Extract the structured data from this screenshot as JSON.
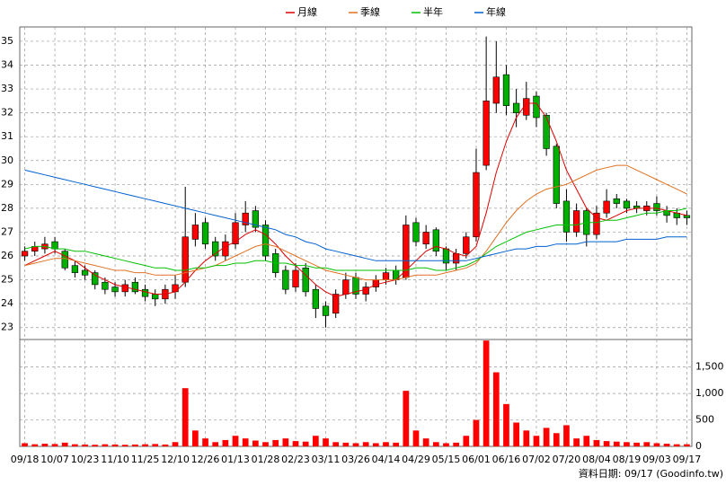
{
  "chart_data": {
    "type": "candlestick",
    "categories": [
      "09/18",
      null,
      null,
      "10/07",
      null,
      null,
      "10/23",
      null,
      null,
      "11/10",
      null,
      null,
      "11/25",
      null,
      null,
      "12/10",
      null,
      null,
      "12/26",
      null,
      null,
      "01/13",
      null,
      null,
      "01/28",
      null,
      null,
      "02/23",
      null,
      null,
      "03/11",
      null,
      null,
      "03/26",
      null,
      null,
      "04/14",
      null,
      null,
      "04/29",
      null,
      null,
      "05/15",
      null,
      null,
      "06/01",
      null,
      null,
      "06/16",
      null,
      null,
      "07/02",
      null,
      null,
      "07/20",
      null,
      null,
      "08/04",
      null,
      null,
      "08/19",
      null,
      null,
      "09/03",
      null,
      null,
      "09/17"
    ],
    "open": [
      26.0,
      26.2,
      26.3,
      26.6,
      26.2,
      25.6,
      25.4,
      25.3,
      24.9,
      24.7,
      24.5,
      24.9,
      24.6,
      24.4,
      24.2,
      24.5,
      24.9,
      26.7,
      27.4,
      26.6,
      26.0,
      26.5,
      27.3,
      27.9,
      27.3,
      26.1,
      25.4,
      24.7,
      25.5,
      24.6,
      23.9,
      23.6,
      24.4,
      25.1,
      24.4,
      24.7,
      25.0,
      25.4,
      25.1,
      27.4,
      26.5,
      27.1,
      26.3,
      25.7,
      26.1,
      26.8,
      29.8,
      32.4,
      33.6,
      32.4,
      31.9,
      32.7,
      31.9,
      30.6,
      28.3,
      27.0,
      27.9,
      26.9,
      27.8,
      28.4,
      28.3,
      28.1,
      27.9,
      28.2,
      27.9,
      27.8,
      27.7
    ],
    "high": [
      26.4,
      26.6,
      26.8,
      26.8,
      26.3,
      25.8,
      25.6,
      25.4,
      25.1,
      24.9,
      25.0,
      25.1,
      24.8,
      24.6,
      24.8,
      25.2,
      28.9,
      27.8,
      27.6,
      26.8,
      26.9,
      27.8,
      28.3,
      28.1,
      27.5,
      26.3,
      25.6,
      25.7,
      25.7,
      24.8,
      24.1,
      24.6,
      25.3,
      25.3,
      24.9,
      25.2,
      25.5,
      25.6,
      27.7,
      27.6,
      27.3,
      27.2,
      26.4,
      26.3,
      27.0,
      30.5,
      35.2,
      35.0,
      34.0,
      33.0,
      33.3,
      32.9,
      32.0,
      30.7,
      28.8,
      28.2,
      28.0,
      28.1,
      28.8,
      28.6,
      28.4,
      28.3,
      28.3,
      28.5,
      28.1,
      28.0,
      27.9
    ],
    "low": [
      25.8,
      26.0,
      26.1,
      26.1,
      25.4,
      25.1,
      25.0,
      24.6,
      24.4,
      24.3,
      24.3,
      24.4,
      24.1,
      23.9,
      24.0,
      24.2,
      24.7,
      26.4,
      26.3,
      25.8,
      25.8,
      26.3,
      27.0,
      27.0,
      25.8,
      25.1,
      24.4,
      24.5,
      24.3,
      23.4,
      23.0,
      23.4,
      24.2,
      24.2,
      24.1,
      24.5,
      24.8,
      24.8,
      25.0,
      26.4,
      26.3,
      26.0,
      25.4,
      25.4,
      25.9,
      26.6,
      29.6,
      32.0,
      31.9,
      31.4,
      31.7,
      31.4,
      30.2,
      28.0,
      26.6,
      26.8,
      26.4,
      26.7,
      27.6,
      28.0,
      27.8,
      27.8,
      27.7,
      27.7,
      27.4,
      27.3,
      27.3
    ],
    "close": [
      26.2,
      26.4,
      26.5,
      26.3,
      25.5,
      25.3,
      25.2,
      24.8,
      24.6,
      24.5,
      24.8,
      24.5,
      24.3,
      24.2,
      24.6,
      24.8,
      26.8,
      27.3,
      26.5,
      26.0,
      26.6,
      27.4,
      27.8,
      27.2,
      26.0,
      25.3,
      24.6,
      25.4,
      24.5,
      23.8,
      23.5,
      24.4,
      25.0,
      24.4,
      24.7,
      25.0,
      25.3,
      25.0,
      27.3,
      26.6,
      27.0,
      26.2,
      25.7,
      26.1,
      26.8,
      29.5,
      32.5,
      33.5,
      32.3,
      32.0,
      32.6,
      31.8,
      30.5,
      28.2,
      27.0,
      27.9,
      26.9,
      27.8,
      28.3,
      28.2,
      28.0,
      28.0,
      28.1,
      27.9,
      27.7,
      27.6,
      27.6
    ],
    "volume": [
      60,
      40,
      50,
      45,
      70,
      40,
      35,
      30,
      40,
      35,
      30,
      35,
      40,
      45,
      35,
      80,
      1100,
      300,
      150,
      80,
      120,
      200,
      150,
      110,
      80,
      120,
      150,
      100,
      90,
      200,
      150,
      80,
      70,
      60,
      80,
      60,
      80,
      70,
      1050,
      300,
      150,
      80,
      60,
      70,
      200,
      500,
      2000,
      1400,
      800,
      450,
      300,
      200,
      350,
      250,
      400,
      150,
      200,
      120,
      100,
      90,
      80,
      70,
      80,
      60,
      50,
      40,
      40
    ],
    "up_color": "#ff0000",
    "down_color": "#00b000",
    "volume_color": "#ff0000",
    "series": [
      {
        "name": "月線",
        "color": "#e00000",
        "values": [
          25.6,
          25.8,
          26.0,
          26.2,
          26.0,
          25.8,
          25.5,
          25.2,
          25.0,
          24.8,
          24.7,
          24.6,
          24.5,
          24.4,
          24.4,
          24.5,
          24.9,
          25.4,
          25.8,
          26.1,
          26.4,
          26.6,
          26.9,
          27.1,
          26.9,
          26.5,
          26.0,
          25.6,
          25.2,
          24.8,
          24.5,
          24.3,
          24.4,
          24.5,
          24.6,
          24.8,
          24.9,
          25.0,
          25.4,
          25.8,
          26.2,
          26.4,
          26.3,
          26.1,
          26.0,
          26.4,
          27.8,
          29.5,
          30.8,
          31.8,
          32.4,
          32.4,
          31.8,
          30.8,
          29.6,
          28.8,
          28.0,
          27.6,
          27.5,
          27.7,
          27.9,
          28.0,
          28.0,
          28.0,
          27.9,
          27.8,
          27.7
        ]
      },
      {
        "name": "季線",
        "color": "#e07020",
        "values": [
          25.6,
          25.7,
          25.8,
          25.9,
          25.9,
          25.8,
          25.7,
          25.6,
          25.5,
          25.4,
          25.4,
          25.3,
          25.3,
          25.2,
          25.2,
          25.2,
          25.3,
          25.4,
          25.5,
          25.6,
          25.8,
          26.0,
          26.2,
          26.4,
          26.5,
          26.4,
          26.2,
          26.0,
          25.8,
          25.6,
          25.4,
          25.3,
          25.2,
          25.1,
          25.0,
          25.0,
          25.0,
          25.0,
          25.1,
          25.2,
          25.2,
          25.2,
          25.3,
          25.4,
          25.5,
          25.7,
          26.2,
          26.8,
          27.4,
          27.9,
          28.3,
          28.6,
          28.8,
          28.9,
          29.0,
          29.2,
          29.4,
          29.6,
          29.7,
          29.8,
          29.8,
          29.6,
          29.4,
          29.2,
          29.0,
          28.8,
          28.6
        ]
      },
      {
        "name": "半年",
        "color": "#00c000",
        "values": [
          26.3,
          26.4,
          26.4,
          26.3,
          26.3,
          26.2,
          26.2,
          26.1,
          26.0,
          25.9,
          25.8,
          25.7,
          25.6,
          25.5,
          25.5,
          25.4,
          25.4,
          25.5,
          25.5,
          25.6,
          25.6,
          25.7,
          25.7,
          25.8,
          25.8,
          25.7,
          25.7,
          25.6,
          25.6,
          25.5,
          25.5,
          25.4,
          25.4,
          25.4,
          25.4,
          25.4,
          25.4,
          25.4,
          25.4,
          25.5,
          25.5,
          25.4,
          25.4,
          25.5,
          25.6,
          25.8,
          26.1,
          26.4,
          26.6,
          26.8,
          27.0,
          27.1,
          27.2,
          27.3,
          27.3,
          27.3,
          27.4,
          27.4,
          27.5,
          27.5,
          27.6,
          27.7,
          27.8,
          27.8,
          27.9,
          27.9,
          28.0
        ]
      },
      {
        "name": "年線",
        "color": "#0060d0",
        "values": [
          29.6,
          29.5,
          29.4,
          29.3,
          29.2,
          29.1,
          29.0,
          28.9,
          28.8,
          28.7,
          28.6,
          28.5,
          28.4,
          28.3,
          28.2,
          28.1,
          28.0,
          27.9,
          27.8,
          27.7,
          27.6,
          27.5,
          27.4,
          27.3,
          27.2,
          27.1,
          26.9,
          26.8,
          26.6,
          26.5,
          26.3,
          26.2,
          26.1,
          26.0,
          25.9,
          25.8,
          25.8,
          25.8,
          25.8,
          25.8,
          25.8,
          25.8,
          25.8,
          25.8,
          25.8,
          25.9,
          26.0,
          26.1,
          26.2,
          26.3,
          26.3,
          26.4,
          26.4,
          26.5,
          26.5,
          26.5,
          26.6,
          26.6,
          26.6,
          26.6,
          26.7,
          26.7,
          26.7,
          26.7,
          26.8,
          26.8,
          26.8
        ]
      }
    ],
    "ylim": [
      22.5,
      35.6
    ],
    "yticks": [
      23,
      24,
      25,
      26,
      27,
      28,
      29,
      30,
      31,
      32,
      33,
      34,
      35
    ],
    "volume_ylim": [
      0,
      2020
    ],
    "volume_yticks": [
      0,
      500,
      {
        "value": 1000,
        "label": "1,000"
      },
      {
        "value": 1500,
        "label": "1,500"
      }
    ],
    "grid": true,
    "footer": "資料日期: 09/17  (Goodinfo.tw)"
  }
}
